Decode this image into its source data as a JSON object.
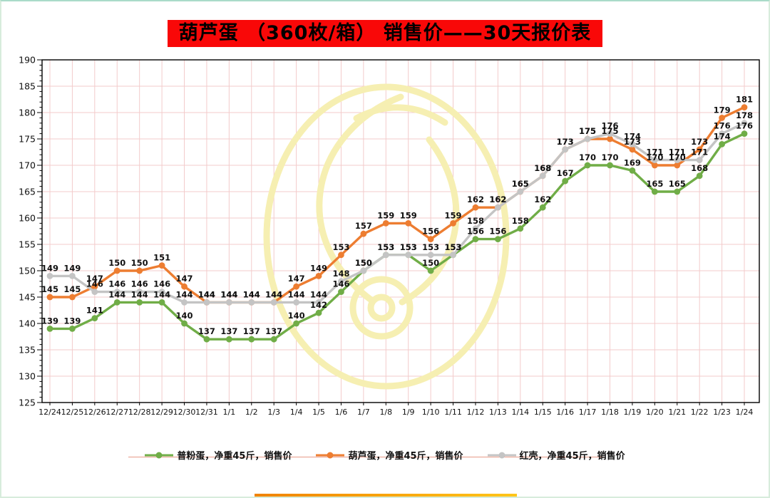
{
  "page": {
    "title_bg": "#f90808",
    "frame_color": "#d7ecdc"
  },
  "chart_data": {
    "type": "line",
    "title": "葫芦蛋 （360枚/箱） 销售价——30天报价表",
    "categories": [
      "12/24",
      "12/25",
      "12/26",
      "12/27",
      "12/28",
      "12/29",
      "12/30",
      "12/31",
      "1/1",
      "1/2",
      "1/3",
      "1/4",
      "1/5",
      "1/6",
      "1/7",
      "1/8",
      "1/9",
      "1/10",
      "1/11",
      "1/12",
      "1/13",
      "1/14",
      "1/15",
      "1/16",
      "1/17",
      "1/18",
      "1/19",
      "1/20",
      "1/21",
      "1/22",
      "1/23",
      "1/24"
    ],
    "series": [
      {
        "name": "普粉蛋，净重45斤，销售价",
        "color": "#70ad47",
        "values": [
          139,
          139,
          141,
          144,
          144,
          144,
          140,
          137,
          137,
          137,
          137,
          140,
          142,
          146,
          150,
          153,
          153,
          150,
          153,
          156,
          156,
          158,
          162,
          167,
          170,
          170,
          169,
          165,
          165,
          168,
          174,
          176
        ]
      },
      {
        "name": "葫芦蛋，净重45斤，销售价",
        "color": "#ed7d31",
        "values": [
          145,
          145,
          147,
          150,
          150,
          151,
          147,
          144,
          144,
          144,
          144,
          147,
          149,
          153,
          157,
          159,
          159,
          156,
          159,
          162,
          162,
          165,
          168,
          173,
          175,
          175,
          173,
          170,
          170,
          173,
          179,
          181
        ]
      },
      {
        "name": "红壳，净重45斤，销售价",
        "color": "#c4c4c4",
        "values": [
          149,
          149,
          146,
          146,
          146,
          146,
          144,
          144,
          144,
          144,
          144,
          144,
          144,
          148,
          150,
          153,
          153,
          153,
          153,
          158,
          162,
          165,
          168,
          173,
          175,
          176,
          174,
          171,
          171,
          171,
          176,
          178
        ]
      }
    ],
    "ylim": [
      125,
      190
    ],
    "ytick_step": 5,
    "grid": true,
    "grid_color": "#f3cbcb",
    "axis_color": "#000000",
    "tick_label_color": "#111111",
    "data_label_color": "#111111",
    "legend_position": "bottom",
    "data_labels": true
  },
  "decor": {
    "legend_rule_color": "#e79a87",
    "bottom_bar_start": "#f08300",
    "bottom_bar_end": "#ffc61a",
    "watermark_color": "#f6efb2"
  }
}
